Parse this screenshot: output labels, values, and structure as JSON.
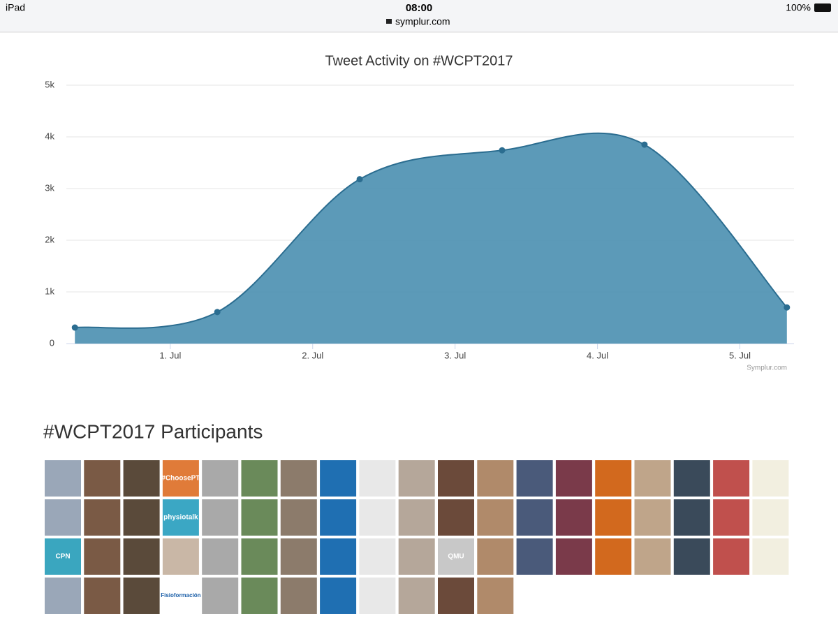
{
  "status_bar": {
    "device": "iPad",
    "time": "08:00",
    "url": "symplur.com",
    "battery": "100%"
  },
  "chart_data": {
    "type": "area",
    "title": "Tweet Activity on #WCPT2017",
    "x": [
      0.33,
      1.33,
      2.33,
      3.33,
      4.33,
      5.33
    ],
    "values": [
      310,
      610,
      3180,
      3740,
      3850,
      700
    ],
    "color": "#4a8fb0",
    "xlim": [
      0.27,
      5.38
    ],
    "xticks": [
      {
        "value": 1,
        "label": "1. Jul"
      },
      {
        "value": 2,
        "label": "2. Jul"
      },
      {
        "value": 3,
        "label": "3. Jul"
      },
      {
        "value": 4,
        "label": "4. Jul"
      },
      {
        "value": 5,
        "label": "5. Jul"
      }
    ],
    "ylim": [
      0,
      5000
    ],
    "yticks": [
      0,
      {
        "value": 1000,
        "label": "1k"
      },
      {
        "value": 2000,
        "label": "2k"
      },
      {
        "value": 3000,
        "label": "3k"
      },
      {
        "value": 4000,
        "label": "4k"
      },
      {
        "value": 5000,
        "label": "5k"
      }
    ],
    "grid": true,
    "credit": "Symplur.com"
  },
  "participants": {
    "title": "#WCPT2017 Participants",
    "tile_texts": [
      "#ChoosePT",
      "physiotalk",
      "CPN",
      "QMU",
      "Fisioformación"
    ]
  }
}
